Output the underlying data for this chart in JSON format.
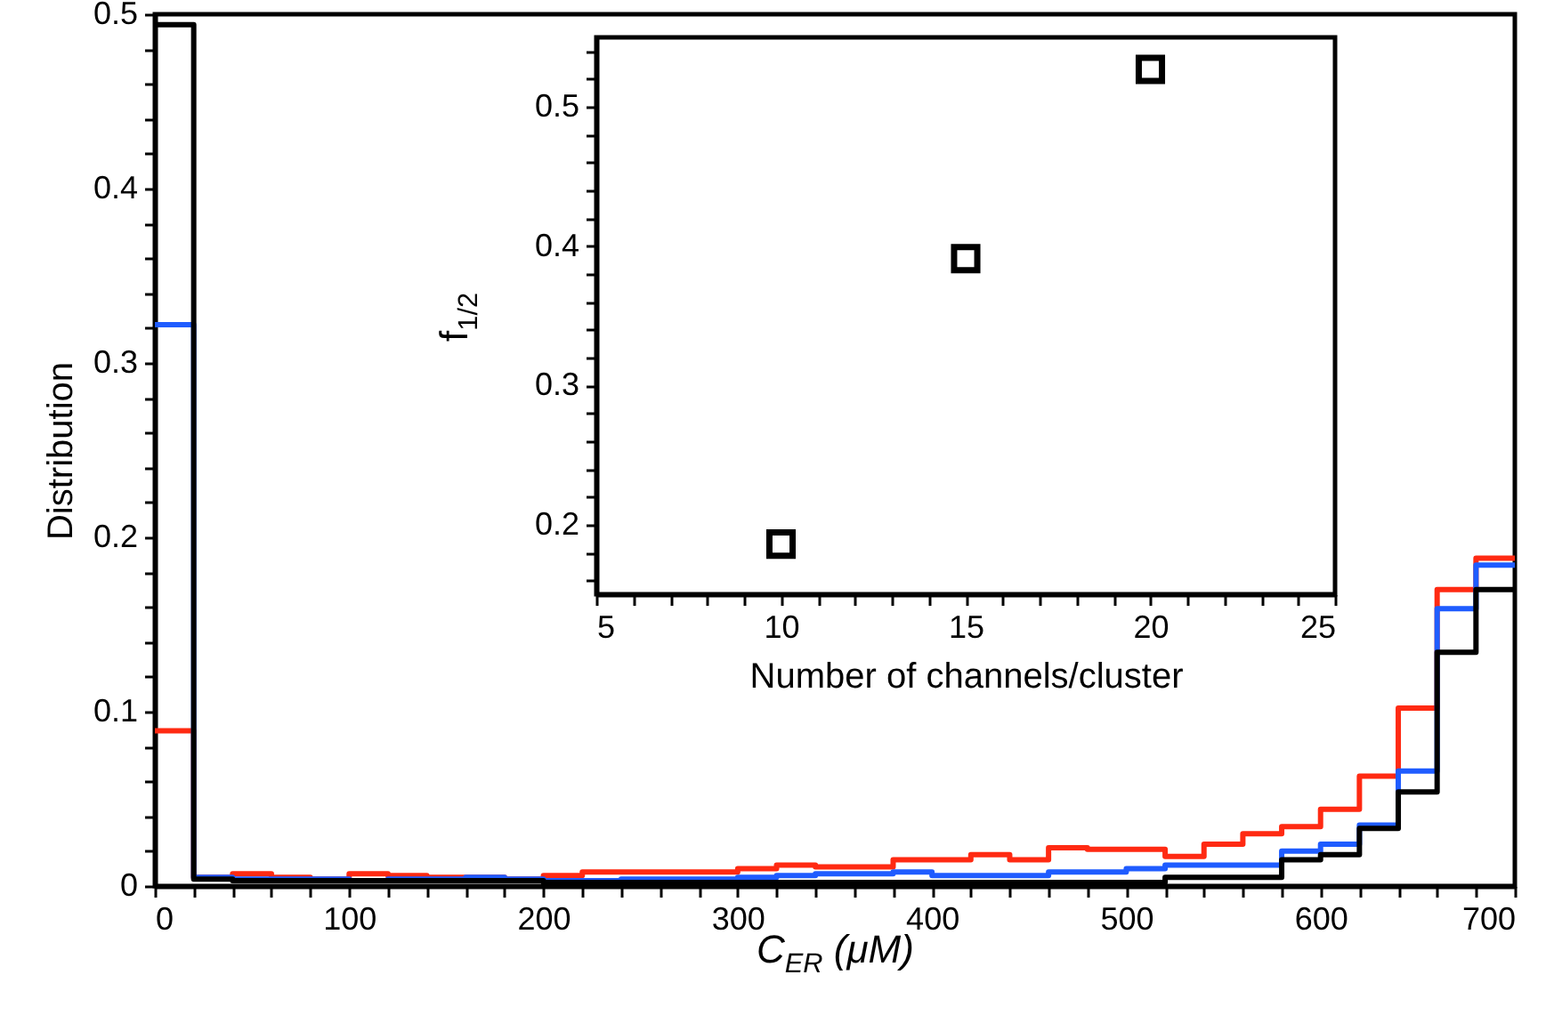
{
  "chart_data": [
    {
      "type": "histogram",
      "xlabel": "C$_{ER}$ (μM)",
      "ylabel": "Distribution",
      "line_style": "solid",
      "bins": [
        0,
        20,
        40,
        60,
        80,
        100,
        120,
        140,
        160,
        180,
        200,
        220,
        240,
        260,
        280,
        300,
        320,
        340,
        360,
        380,
        400,
        420,
        440,
        460,
        480,
        500,
        520,
        540,
        560,
        580,
        600,
        620,
        640,
        660,
        680,
        700
      ],
      "series": [
        {
          "color": "#ff2a12",
          "values": [
            0.089,
            0.005,
            0.007,
            0.005,
            0.004,
            0.007,
            0.006,
            0.005,
            0.005,
            0.004,
            0.006,
            0.008,
            0.008,
            0.008,
            0.008,
            0.01,
            0.012,
            0.011,
            0.011,
            0.015,
            0.015,
            0.018,
            0.015,
            0.022,
            0.021,
            0.021,
            0.017,
            0.024,
            0.03,
            0.034,
            0.044,
            0.063,
            0.102,
            0.17,
            0.188
          ]
        },
        {
          "color": "#1f5cff",
          "values": [
            0.322,
            0.005,
            0.004,
            0.004,
            0.004,
            0.003,
            0.004,
            0.004,
            0.005,
            0.004,
            0.003,
            0.003,
            0.004,
            0.004,
            0.004,
            0.005,
            0.006,
            0.007,
            0.007,
            0.008,
            0.006,
            0.006,
            0.006,
            0.008,
            0.008,
            0.01,
            0.012,
            0.012,
            0.012,
            0.02,
            0.024,
            0.035,
            0.066,
            0.159,
            0.184
          ]
        },
        {
          "color": "#000000",
          "values": [
            0.494,
            0.004,
            0.003,
            0.003,
            0.003,
            0.003,
            0.003,
            0.003,
            0.003,
            0.003,
            0.002,
            0.002,
            0.002,
            0.002,
            0.002,
            0.002,
            0.002,
            0.002,
            0.002,
            0.002,
            0.002,
            0.002,
            0.002,
            0.002,
            0.002,
            0.002,
            0.005,
            0.005,
            0.005,
            0.015,
            0.018,
            0.033,
            0.054,
            0.134,
            0.17
          ]
        }
      ],
      "xlim": [
        0,
        700
      ],
      "xticks": [
        0,
        {
          "value": 20,
          "label": null
        },
        {
          "value": 40,
          "label": null
        },
        {
          "value": 60,
          "label": null
        },
        {
          "value": 80,
          "label": null
        },
        100,
        {
          "value": 120,
          "label": null
        },
        {
          "value": 140,
          "label": null
        },
        {
          "value": 160,
          "label": null
        },
        {
          "value": 180,
          "label": null
        },
        200,
        {
          "value": 220,
          "label": null
        },
        {
          "value": 240,
          "label": null
        },
        {
          "value": 260,
          "label": null
        },
        {
          "value": 280,
          "label": null
        },
        300,
        {
          "value": 320,
          "label": null
        },
        {
          "value": 340,
          "label": null
        },
        {
          "value": 360,
          "label": null
        },
        {
          "value": 380,
          "label": null
        },
        400,
        {
          "value": 420,
          "label": null
        },
        {
          "value": 440,
          "label": null
        },
        {
          "value": 460,
          "label": null
        },
        {
          "value": 480,
          "label": null
        },
        500,
        {
          "value": 520,
          "label": null
        },
        {
          "value": 540,
          "label": null
        },
        {
          "value": 560,
          "label": null
        },
        {
          "value": 580,
          "label": null
        },
        600,
        {
          "value": 620,
          "label": null
        },
        {
          "value": 640,
          "label": null
        },
        {
          "value": 660,
          "label": null
        },
        {
          "value": 680,
          "label": null
        },
        700
      ],
      "ylim": [
        0,
        0.5
      ],
      "yticks": [
        0,
        {
          "value": 0.02,
          "label": null
        },
        {
          "value": 0.04,
          "label": null
        },
        {
          "value": 0.06,
          "label": null
        },
        {
          "value": 0.08,
          "label": null
        },
        0.1,
        {
          "value": 0.12,
          "label": null
        },
        {
          "value": 0.14,
          "label": null
        },
        {
          "value": 0.16,
          "label": null
        },
        {
          "value": 0.18,
          "label": null
        },
        0.2,
        {
          "value": 0.22,
          "label": null
        },
        {
          "value": 0.24,
          "label": null
        },
        {
          "value": 0.26,
          "label": null
        },
        {
          "value": 0.28,
          "label": null
        },
        0.3,
        {
          "value": 0.32,
          "label": null
        },
        {
          "value": 0.34,
          "label": null
        },
        {
          "value": 0.36,
          "label": null
        },
        {
          "value": 0.38,
          "label": null
        },
        0.4,
        {
          "value": 0.42,
          "label": null
        },
        {
          "value": 0.44,
          "label": null
        },
        {
          "value": 0.46,
          "label": null
        },
        {
          "value": 0.48,
          "label": null
        },
        0.5
      ]
    },
    {
      "type": "scatter",
      "xlabel": "Number of channels/cluster",
      "ylabel": "f$_{1/2}$",
      "marker": "square",
      "x": [
        10,
        15,
        20
      ],
      "series": [
        {
          "color": "#000000",
          "values": [
            0.186,
            0.391,
            0.527
          ]
        }
      ],
      "xlim": [
        5,
        25
      ],
      "xticks": [
        5,
        {
          "value": 6,
          "label": null
        },
        {
          "value": 7,
          "label": null
        },
        {
          "value": 8,
          "label": null
        },
        {
          "value": 9,
          "label": null
        },
        10,
        {
          "value": 11,
          "label": null
        },
        {
          "value": 12,
          "label": null
        },
        {
          "value": 13,
          "label": null
        },
        {
          "value": 14,
          "label": null
        },
        15,
        {
          "value": 16,
          "label": null
        },
        {
          "value": 17,
          "label": null
        },
        {
          "value": 18,
          "label": null
        },
        {
          "value": 19,
          "label": null
        },
        20,
        {
          "value": 21,
          "label": null
        },
        {
          "value": 22,
          "label": null
        },
        {
          "value": 23,
          "label": null
        },
        {
          "value": 24,
          "label": null
        },
        25
      ],
      "ylim": [
        0.15,
        0.55
      ],
      "yticks": [
        {
          "value": 0.16,
          "label": null
        },
        {
          "value": 0.18,
          "label": null
        },
        0.2,
        {
          "value": 0.22,
          "label": null
        },
        {
          "value": 0.24,
          "label": null
        },
        {
          "value": 0.26,
          "label": null
        },
        {
          "value": 0.28,
          "label": null
        },
        0.3,
        {
          "value": 0.32,
          "label": null
        },
        {
          "value": 0.34,
          "label": null
        },
        {
          "value": 0.36,
          "label": null
        },
        {
          "value": 0.38,
          "label": null
        },
        0.4,
        {
          "value": 0.42,
          "label": null
        },
        {
          "value": 0.44,
          "label": null
        },
        {
          "value": 0.46,
          "label": null
        },
        {
          "value": 0.48,
          "label": null
        },
        0.5,
        {
          "value": 0.52,
          "label": null
        },
        {
          "value": 0.54,
          "label": null
        }
      ]
    }
  ]
}
